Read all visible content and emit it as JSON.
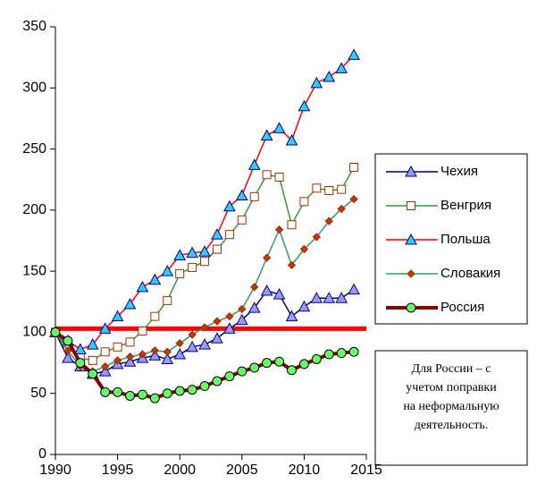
{
  "chart_data": {
    "type": "line",
    "x": [
      1990,
      1991,
      1992,
      1993,
      1994,
      1995,
      1996,
      1997,
      1998,
      1999,
      2000,
      2001,
      2002,
      2003,
      2004,
      2005,
      2006,
      2007,
      2008,
      2009,
      2010,
      2011,
      2012,
      2013,
      2014
    ],
    "series": [
      {
        "name": "Чехия",
        "color": "#000080",
        "marker": "triangle",
        "marker_color": "#9999ff",
        "marker_edge": "#000080",
        "values": [
          100,
          79,
          72,
          66,
          68,
          74,
          76,
          79,
          81,
          78,
          82,
          88,
          90,
          95,
          103,
          110,
          120,
          134,
          131,
          113,
          121,
          128,
          128,
          128,
          135
        ]
      },
      {
        "name": "Венгрия",
        "color": "#339933",
        "marker": "square",
        "marker_color": "#ffffff",
        "marker_edge": "#993300",
        "values": [
          100,
          88,
          79,
          77,
          84,
          88,
          92,
          101,
          113,
          126,
          148,
          153,
          158,
          168,
          180,
          192,
          211,
          229,
          227,
          188,
          207,
          218,
          216,
          217,
          235
        ]
      },
      {
        "name": "Польша",
        "color": "#ff0000",
        "marker": "triangle",
        "marker_color": "#33ccff",
        "marker_edge": "#000080",
        "values": [
          100,
          93,
          86,
          90,
          103,
          113,
          123,
          137,
          143,
          150,
          163,
          165,
          166,
          180,
          203,
          212,
          237,
          261,
          267,
          257,
          285,
          304,
          309,
          316,
          327
        ]
      },
      {
        "name": "Словакия",
        "color": "#339966",
        "marker": "diamond",
        "marker_color": "#cc3300",
        "marker_edge": "#993300",
        "values": [
          100,
          85,
          72,
          68,
          72,
          77,
          80,
          82,
          85,
          84,
          91,
          98,
          104,
          109,
          113,
          119,
          137,
          161,
          184,
          155,
          168,
          178,
          191,
          201,
          209
        ]
      },
      {
        "name": "Россия",
        "color": "#800000",
        "marker": "circle",
        "marker_color": "#66ff66",
        "marker_edge": "#000000",
        "width": 4,
        "values": [
          100,
          93,
          75,
          66,
          51,
          51,
          48,
          49,
          46,
          50,
          52,
          53,
          56,
          60,
          64,
          68,
          71,
          75,
          76,
          69,
          74,
          78,
          82,
          83,
          84
        ]
      }
    ],
    "hline": {
      "value": 103,
      "color": "#ff0000"
    },
    "xlim": [
      1990,
      2015
    ],
    "xticks": [
      1990,
      1995,
      2000,
      2005,
      2010,
      2015
    ],
    "ylim": [
      0,
      350
    ],
    "yticks": [
      0,
      50,
      100,
      150,
      200,
      250,
      300,
      350
    ],
    "annotation": [
      "Для России – с",
      "учетом поправки",
      "на неформальную",
      "деятельность."
    ]
  }
}
